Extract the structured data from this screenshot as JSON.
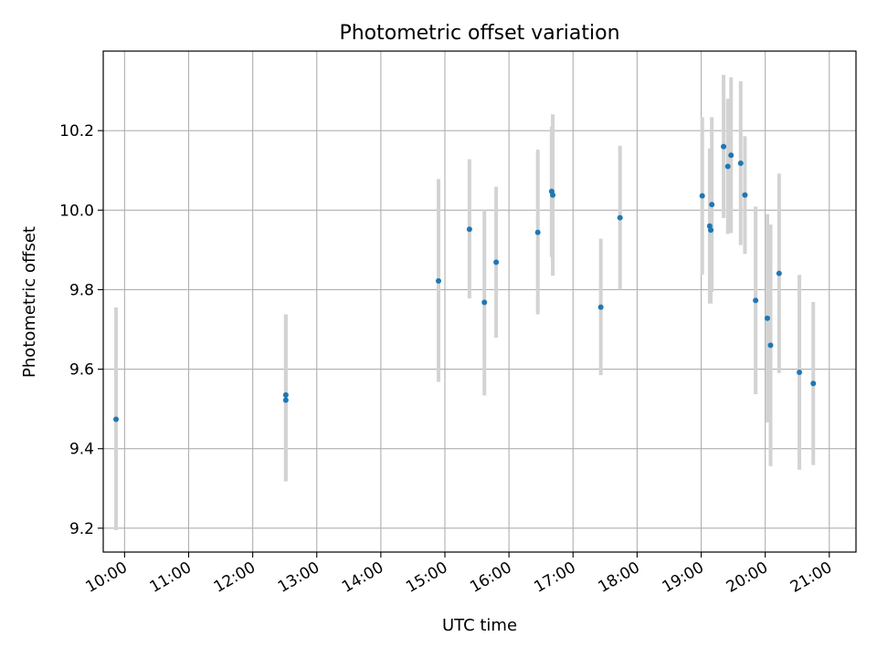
{
  "chart_data": {
    "type": "scatter",
    "title": "Photometric offset variation",
    "xlabel": "UTC time",
    "ylabel": "Photometric offset",
    "x_unit": "UTC time (HH:MM)",
    "xlim": [
      "09:40",
      "21:25"
    ],
    "ylim": [
      9.14,
      10.4
    ],
    "x_ticks": [
      "10:00",
      "11:00",
      "12:00",
      "13:00",
      "14:00",
      "15:00",
      "16:00",
      "17:00",
      "18:00",
      "19:00",
      "20:00",
      "21:00"
    ],
    "y_ticks": [
      9.2,
      9.4,
      9.6,
      9.8,
      10.0,
      10.2
    ],
    "grid": true,
    "colors": {
      "point": "#1f77b4",
      "errorbar": "#d3d3d3",
      "grid": "#b0b0b0"
    },
    "series": [
      {
        "marker": "point-with-errorbar",
        "points": [
          {
            "x": "09:52",
            "y": 9.474,
            "ylo": 9.195,
            "yhi": 9.755
          },
          {
            "x": "12:31",
            "y": 9.535,
            "ylo": 9.318,
            "yhi": 9.738
          },
          {
            "x": "12:31",
            "y": 9.522,
            "ylo": 9.318,
            "yhi": 9.738
          },
          {
            "x": "14:54",
            "y": 9.822,
            "ylo": 9.568,
            "yhi": 10.078
          },
          {
            "x": "15:23",
            "y": 9.952,
            "ylo": 9.778,
            "yhi": 10.128
          },
          {
            "x": "15:37",
            "y": 9.768,
            "ylo": 9.534,
            "yhi": 10.002
          },
          {
            "x": "15:48",
            "y": 9.869,
            "ylo": 9.679,
            "yhi": 10.059
          },
          {
            "x": "16:27",
            "y": 9.944,
            "ylo": 9.738,
            "yhi": 10.152
          },
          {
            "x": "16:40",
            "y": 10.047,
            "ylo": 9.882,
            "yhi": 10.21
          },
          {
            "x": "16:41",
            "y": 10.038,
            "ylo": 9.835,
            "yhi": 10.241
          },
          {
            "x": "17:26",
            "y": 9.756,
            "ylo": 9.585,
            "yhi": 9.928
          },
          {
            "x": "17:44",
            "y": 9.981,
            "ylo": 9.8,
            "yhi": 10.162
          },
          {
            "x": "19:01",
            "y": 10.036,
            "ylo": 9.838,
            "yhi": 10.234
          },
          {
            "x": "19:08",
            "y": 9.96,
            "ylo": 9.765,
            "yhi": 10.155
          },
          {
            "x": "19:09",
            "y": 9.95,
            "ylo": 9.765,
            "yhi": 10.155
          },
          {
            "x": "19:10",
            "y": 10.014,
            "ylo": 9.794,
            "yhi": 10.234
          },
          {
            "x": "19:21",
            "y": 10.16,
            "ylo": 9.98,
            "yhi": 10.34
          },
          {
            "x": "19:25",
            "y": 10.11,
            "ylo": 9.94,
            "yhi": 10.28
          },
          {
            "x": "19:28",
            "y": 10.138,
            "ylo": 9.942,
            "yhi": 10.334
          },
          {
            "x": "19:37",
            "y": 10.118,
            "ylo": 9.912,
            "yhi": 10.324
          },
          {
            "x": "19:41",
            "y": 10.038,
            "ylo": 9.89,
            "yhi": 10.186
          },
          {
            "x": "19:51",
            "y": 9.773,
            "ylo": 9.537,
            "yhi": 10.009
          },
          {
            "x": "20:02",
            "y": 9.728,
            "ylo": 9.466,
            "yhi": 9.99
          },
          {
            "x": "20:05",
            "y": 9.66,
            "ylo": 9.356,
            "yhi": 9.964
          },
          {
            "x": "20:13",
            "y": 9.841,
            "ylo": 9.59,
            "yhi": 10.092
          },
          {
            "x": "20:32",
            "y": 9.592,
            "ylo": 9.347,
            "yhi": 9.837
          },
          {
            "x": "20:45",
            "y": 9.564,
            "ylo": 9.359,
            "yhi": 9.769
          }
        ]
      }
    ]
  }
}
